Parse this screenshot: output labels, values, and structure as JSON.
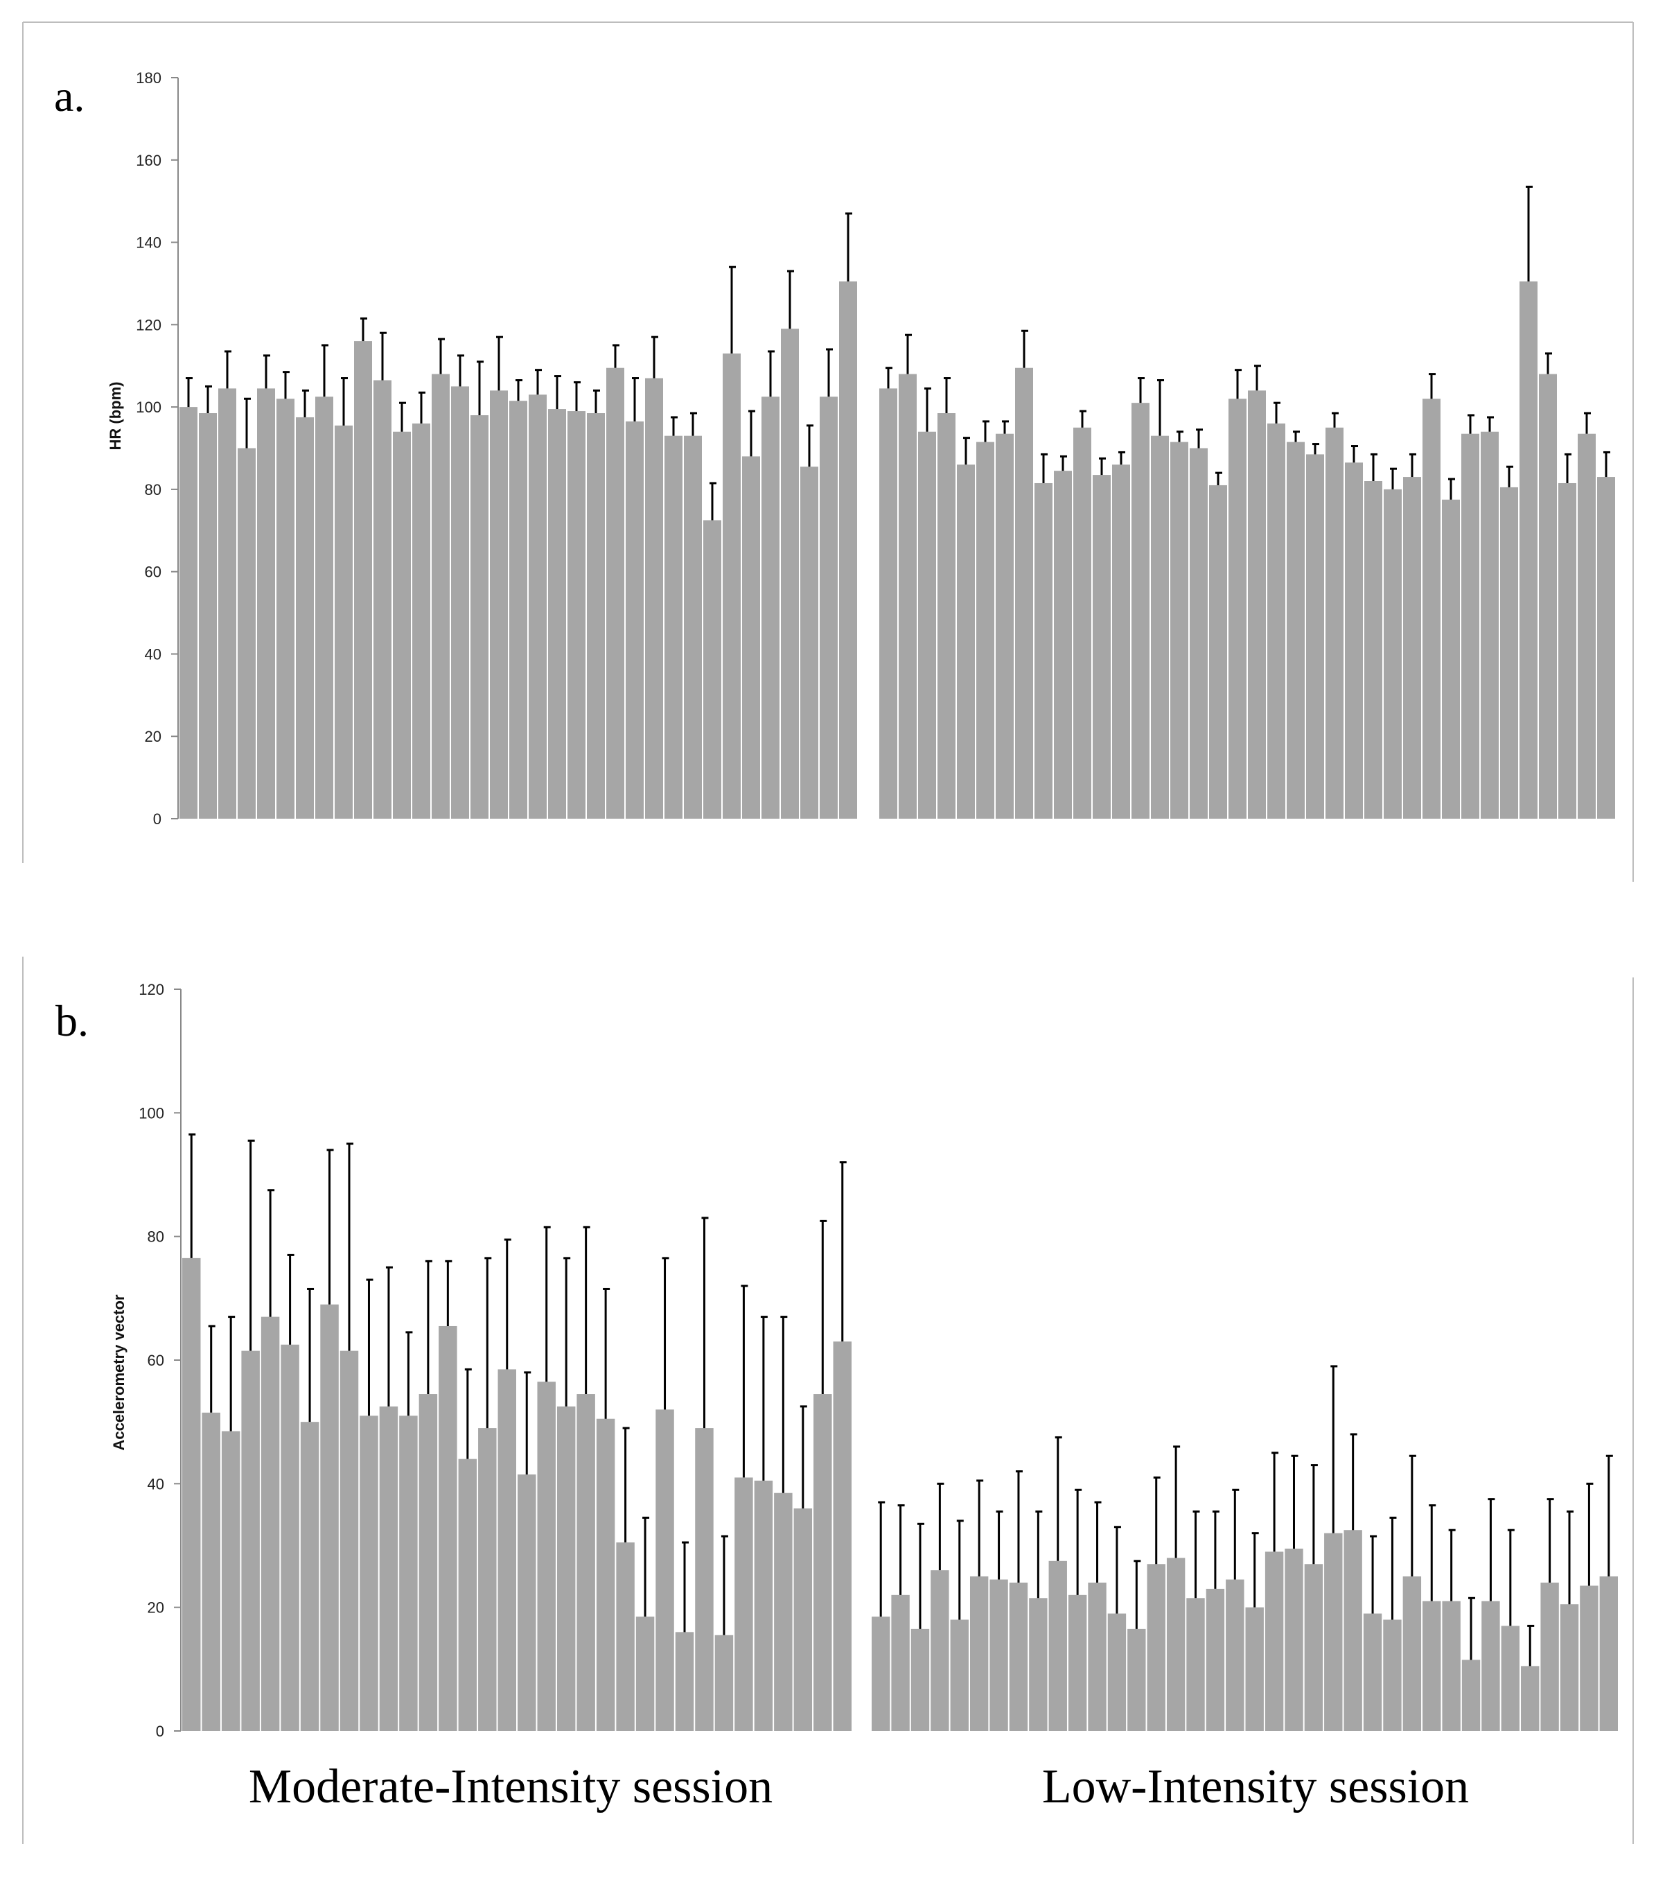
{
  "chart_data": [
    {
      "type": "bar",
      "panel_label": "a.",
      "ylabel": "HR (bpm)",
      "ylim": [
        0,
        180
      ],
      "yticks": [
        "0",
        "20",
        "40",
        "60",
        "80",
        "100",
        "120",
        "140",
        "160",
        "180"
      ],
      "grid": false,
      "groups": [
        {
          "name": "Moderate-Intensity session",
          "values": [
            100,
            98.5,
            104.5,
            90,
            104.5,
            102,
            97.5,
            102.5,
            95.5,
            116,
            106.5,
            94,
            96,
            108,
            105,
            98,
            104,
            101.5,
            103,
            99.5,
            99,
            98.5,
            109.5,
            96.5,
            107,
            93,
            93,
            72.5,
            113,
            88,
            102.5,
            119,
            85.5,
            102.5,
            130.5
          ],
          "errors": [
            7,
            6.5,
            9,
            12,
            8,
            6.5,
            6.5,
            12.5,
            11.5,
            5.5,
            11.5,
            7,
            7.5,
            8.5,
            7.5,
            13,
            13,
            5,
            6,
            8,
            7,
            5.5,
            5.5,
            10.5,
            10,
            4.5,
            5.5,
            9,
            21,
            11,
            11,
            14,
            10,
            11.5,
            16.5
          ]
        },
        {
          "name": "Low-Intensity session",
          "values": [
            104.5,
            108,
            94,
            98.5,
            86,
            91.5,
            93.5,
            109.5,
            81.5,
            84.5,
            95,
            83.5,
            86,
            101,
            93,
            91.5,
            90,
            81,
            102,
            104,
            96,
            91.5,
            88.5,
            95,
            86.5,
            82,
            80,
            83,
            102,
            77.5,
            93.5,
            94,
            80.5,
            130.5,
            108,
            81.5,
            93.5,
            83
          ],
          "errors": [
            5,
            9.5,
            10.5,
            8.5,
            6.5,
            5,
            3,
            9,
            7,
            3.5,
            4,
            4,
            3,
            6,
            13.5,
            2.5,
            4.5,
            3,
            7,
            6,
            5,
            2.5,
            2.5,
            3.5,
            4,
            6.5,
            5,
            5.5,
            6,
            5,
            4.5,
            3.5,
            5,
            23,
            5,
            7,
            5,
            6
          ]
        }
      ]
    },
    {
      "type": "bar",
      "panel_label": "b.",
      "ylabel": "Accelerometry vector",
      "ylim": [
        0,
        120
      ],
      "yticks": [
        "0",
        "20",
        "40",
        "60",
        "80",
        "100",
        "120"
      ],
      "grid": false,
      "groups": [
        {
          "name": "Moderate-Intensity session",
          "values": [
            76.5,
            51.5,
            48.5,
            61.5,
            67,
            62.5,
            50,
            69,
            61.5,
            51,
            52.5,
            51,
            54.5,
            65.5,
            44,
            49,
            58.5,
            41.5,
            56.5,
            52.5,
            54.5,
            50.5,
            30.5,
            18.5,
            52,
            16,
            49,
            15.5,
            41,
            40.5,
            38.5,
            36,
            54.5,
            63
          ],
          "errors": [
            20,
            14,
            18.5,
            34,
            20.5,
            14.5,
            21.5,
            25,
            33.5,
            22,
            22.5,
            13.5,
            21.5,
            10.5,
            14.5,
            27.5,
            21,
            16.5,
            25,
            24,
            27,
            21,
            18.5,
            16,
            24.5,
            14.5,
            34,
            16,
            31,
            26.5,
            28.5,
            16.5,
            28,
            29
          ]
        },
        {
          "name": "Low-Intensity session",
          "values": [
            18.5,
            22,
            16.5,
            26,
            18,
            25,
            24.5,
            24,
            21.5,
            27.5,
            22,
            24,
            19,
            16.5,
            27,
            28,
            21.5,
            23,
            24.5,
            20,
            29,
            29.5,
            27,
            32,
            32.5,
            19,
            18,
            25,
            21,
            21,
            11.5,
            21,
            17,
            10.5,
            24,
            20.5,
            23.5,
            25
          ],
          "errors": [
            18.5,
            14.5,
            17,
            14,
            16,
            15.5,
            11,
            18,
            14,
            20,
            17,
            13,
            14,
            11,
            14,
            18,
            14,
            12.5,
            14.5,
            12,
            16,
            15,
            16,
            27,
            15.5,
            12.5,
            16.5,
            19.5,
            15.5,
            11.5,
            10,
            16.5,
            15.5,
            6.5,
            13.5,
            15,
            16.5,
            19.5
          ]
        }
      ]
    }
  ],
  "x_labels": {
    "moderate": "Moderate-Intensity session",
    "low": "Low-Intensity session"
  }
}
